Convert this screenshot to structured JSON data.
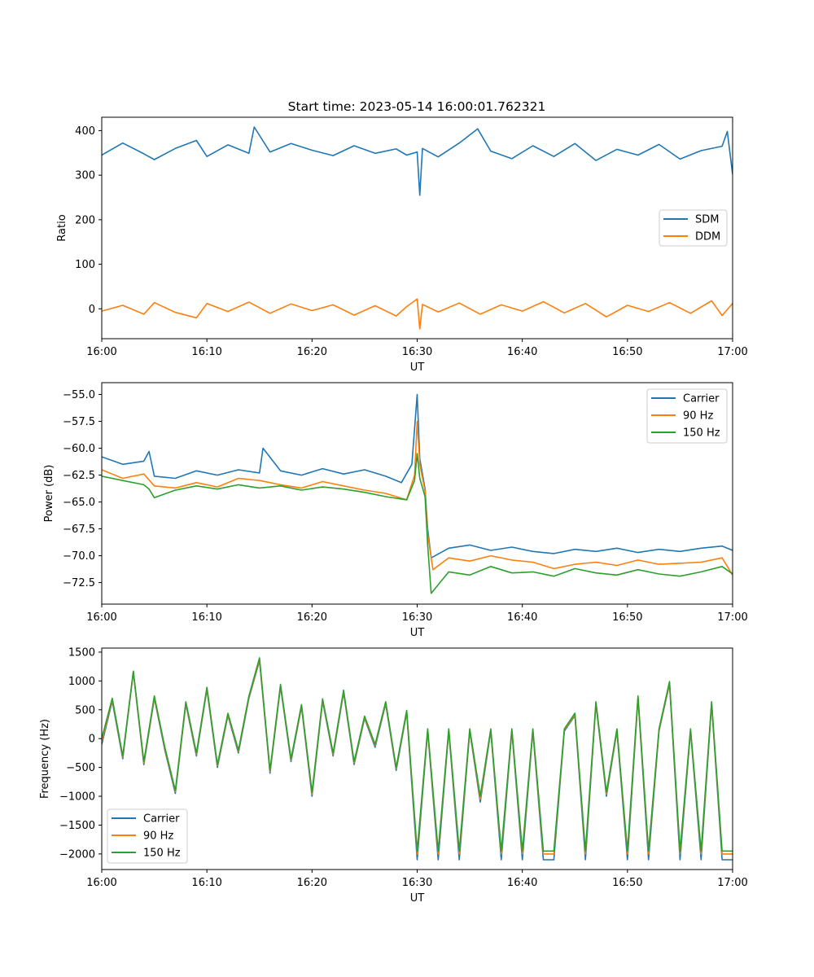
{
  "figure": {
    "title": "Start time: 2023-05-14 16:00:01.762321"
  },
  "colors": {
    "blue": "#1f77b4",
    "orange": "#ff7f0e",
    "green": "#2ca02c"
  },
  "chart_data": [
    {
      "type": "line",
      "title": "Start time: 2023-05-14 16:00:01.762321",
      "xlabel": "UT",
      "ylabel": "Ratio",
      "xlim": [
        "16:00",
        "17:00"
      ],
      "xticks": [
        "16:00",
        "16:10",
        "16:20",
        "16:30",
        "16:40",
        "16:50",
        "17:00"
      ],
      "ylim": [
        -67,
        430
      ],
      "yticks": [
        0,
        100,
        200,
        300,
        400
      ],
      "grid": false,
      "legend": "center-right",
      "series": [
        {
          "name": "SDM",
          "color": "#1f77b4",
          "x": [
            "16:00",
            "16:02",
            "16:04",
            "16:05",
            "16:07",
            "16:09",
            "16:10",
            "16:12",
            "16:14",
            "16:14:30",
            "16:16",
            "16:18",
            "16:20",
            "16:22",
            "16:24",
            "16:26",
            "16:28",
            "16:29",
            "16:30",
            "16:30:15",
            "16:30:30",
            "16:32",
            "16:34",
            "16:35:45",
            "16:37",
            "16:39",
            "16:41",
            "16:43",
            "16:45",
            "16:47",
            "16:49",
            "16:51",
            "16:53",
            "16:55",
            "16:57",
            "16:59",
            "16:59:30",
            "17:00"
          ],
          "values": [
            345,
            372,
            348,
            335,
            360,
            378,
            342,
            368,
            349,
            408,
            352,
            371,
            356,
            344,
            366,
            349,
            359,
            345,
            352,
            255,
            360,
            341,
            372,
            404,
            354,
            337,
            366,
            342,
            371,
            333,
            358,
            345,
            369,
            336,
            355,
            365,
            398,
            302
          ]
        },
        {
          "name": "DDM",
          "color": "#ff7f0e",
          "x": [
            "16:00",
            "16:02",
            "16:04",
            "16:05",
            "16:07",
            "16:09",
            "16:10",
            "16:12",
            "16:14",
            "16:16",
            "16:18",
            "16:20",
            "16:22",
            "16:24",
            "16:26",
            "16:28",
            "16:29",
            "16:30",
            "16:30:15",
            "16:30:30",
            "16:32",
            "16:34",
            "16:36",
            "16:38",
            "16:40",
            "16:42",
            "16:44",
            "16:46",
            "16:48",
            "16:50",
            "16:52",
            "16:54",
            "16:56",
            "16:58",
            "16:59",
            "17:00"
          ],
          "values": [
            -5,
            8,
            -12,
            14,
            -8,
            -20,
            12,
            -6,
            15,
            -10,
            11,
            -4,
            9,
            -14,
            7,
            -16,
            5,
            22,
            -45,
            10,
            -7,
            13,
            -12,
            9,
            -5,
            16,
            -9,
            12,
            -18,
            8,
            -6,
            14,
            -10,
            18,
            -15,
            12
          ]
        }
      ]
    },
    {
      "type": "line",
      "xlabel": "UT",
      "ylabel": "Power (dB)",
      "xlim": [
        "16:00",
        "17:00"
      ],
      "xticks": [
        "16:00",
        "16:10",
        "16:20",
        "16:30",
        "16:40",
        "16:50",
        "17:00"
      ],
      "ylim": [
        -74.5,
        -53.9
      ],
      "yticks": [
        -55.0,
        -57.5,
        -60.0,
        -62.5,
        -65.0,
        -67.5,
        -70.0,
        -72.5
      ],
      "ytick_labels": [
        "−55.0",
        "−57.5",
        "−60.0",
        "−62.5",
        "−65.0",
        "−67.5",
        "−70.0",
        "−72.5"
      ],
      "grid": false,
      "legend": "top-right",
      "series": [
        {
          "name": "Carrier",
          "color": "#1f77b4",
          "x": [
            "16:00",
            "16:02",
            "16:04",
            "16:04:30",
            "16:05",
            "16:07",
            "16:09",
            "16:11",
            "16:13",
            "16:15",
            "16:15:20",
            "16:17",
            "16:19",
            "16:21",
            "16:23",
            "16:25",
            "16:27",
            "16:28:30",
            "16:29:30",
            "16:30",
            "16:30:15",
            "16:30:45",
            "16:31",
            "16:31:20",
            "16:33",
            "16:35",
            "16:37",
            "16:39",
            "16:41",
            "16:43",
            "16:45",
            "16:47",
            "16:49",
            "16:51",
            "16:53",
            "16:55",
            "16:57",
            "16:59",
            "17:00"
          ],
          "values": [
            -60.8,
            -61.5,
            -61.2,
            -60.3,
            -62.6,
            -62.8,
            -62.1,
            -62.5,
            -62.0,
            -62.3,
            -60.0,
            -62.1,
            -62.5,
            -61.9,
            -62.4,
            -62.0,
            -62.6,
            -63.2,
            -61.5,
            -55.0,
            -61.0,
            -63.8,
            -67.5,
            -70.2,
            -69.3,
            -69.0,
            -69.5,
            -69.2,
            -69.6,
            -69.8,
            -69.4,
            -69.6,
            -69.3,
            -69.7,
            -69.4,
            -69.6,
            -69.3,
            -69.1,
            -69.5
          ]
        },
        {
          "name": "90 Hz",
          "color": "#ff7f0e",
          "x": [
            "16:00",
            "16:02",
            "16:04",
            "16:05",
            "16:07",
            "16:09",
            "16:11",
            "16:13",
            "16:15",
            "16:17",
            "16:19",
            "16:21",
            "16:23",
            "16:25",
            "16:27",
            "16:29",
            "16:29:45",
            "16:30",
            "16:30:15",
            "16:30:45",
            "16:31",
            "16:31:30",
            "16:33",
            "16:35",
            "16:37",
            "16:39",
            "16:41",
            "16:43",
            "16:45",
            "16:47",
            "16:49",
            "16:51",
            "16:53",
            "16:55",
            "16:57",
            "16:59",
            "17:00"
          ],
          "values": [
            -62.0,
            -62.8,
            -62.4,
            -63.5,
            -63.7,
            -63.2,
            -63.6,
            -62.8,
            -63.0,
            -63.4,
            -63.7,
            -63.1,
            -63.5,
            -63.9,
            -64.2,
            -64.8,
            -62.5,
            -57.5,
            -61.5,
            -64.0,
            -68.0,
            -71.3,
            -70.2,
            -70.5,
            -70.0,
            -70.4,
            -70.6,
            -71.2,
            -70.8,
            -70.6,
            -70.9,
            -70.4,
            -70.8,
            -70.7,
            -70.6,
            -70.2,
            -71.8
          ]
        },
        {
          "name": "150 Hz",
          "color": "#2ca02c",
          "x": [
            "16:00",
            "16:02",
            "16:04",
            "16:04:30",
            "16:05",
            "16:07",
            "16:09",
            "16:11",
            "16:13",
            "16:15",
            "16:17",
            "16:19",
            "16:21",
            "16:23",
            "16:25",
            "16:27",
            "16:29",
            "16:29:45",
            "16:30",
            "16:30:15",
            "16:30:45",
            "16:31",
            "16:31:20",
            "16:33",
            "16:35",
            "16:37",
            "16:39",
            "16:41",
            "16:43",
            "16:45",
            "16:47",
            "16:49",
            "16:51",
            "16:53",
            "16:55",
            "16:57",
            "16:59",
            "17:00"
          ],
          "values": [
            -62.6,
            -63.0,
            -63.4,
            -63.8,
            -64.6,
            -63.9,
            -63.5,
            -63.8,
            -63.4,
            -63.7,
            -63.5,
            -63.9,
            -63.6,
            -63.8,
            -64.1,
            -64.5,
            -64.8,
            -63.0,
            -60.5,
            -62.8,
            -64.5,
            -69.0,
            -73.5,
            -71.5,
            -71.8,
            -71.0,
            -71.6,
            -71.5,
            -71.9,
            -71.2,
            -71.6,
            -71.8,
            -71.3,
            -71.7,
            -71.9,
            -71.5,
            -71.0,
            -71.7
          ]
        }
      ]
    },
    {
      "type": "line",
      "xlabel": "UT",
      "ylabel": "Frequency (Hz)",
      "xlim": [
        "16:00",
        "17:00"
      ],
      "xticks": [
        "16:00",
        "16:10",
        "16:20",
        "16:30",
        "16:40",
        "16:50",
        "17:00"
      ],
      "ylim": [
        -2270,
        1570
      ],
      "yticks": [
        1500,
        1000,
        500,
        0,
        -500,
        -1000,
        -1500,
        -2000
      ],
      "ytick_labels": [
        "1500",
        "1000",
        "500",
        "0",
        "−500",
        "−1000",
        "−1500",
        "−2000"
      ],
      "grid": false,
      "legend": "bottom-left",
      "series": [
        {
          "name": "Carrier",
          "color": "#1f77b4",
          "x": [
            "16:00",
            "16:01",
            "16:02",
            "16:03",
            "16:04",
            "16:05",
            "16:06",
            "16:07",
            "16:08",
            "16:09",
            "16:10",
            "16:11",
            "16:12",
            "16:13",
            "16:14",
            "16:15",
            "16:16",
            "16:17",
            "16:18",
            "16:19",
            "16:20",
            "16:21",
            "16:22",
            "16:23",
            "16:24",
            "16:25",
            "16:26",
            "16:27",
            "16:28",
            "16:29",
            "16:30",
            "16:31",
            "16:32",
            "16:33",
            "16:34",
            "16:35",
            "16:36",
            "16:37",
            "16:38",
            "16:39",
            "16:40",
            "16:41",
            "16:42",
            "16:43",
            "16:44",
            "16:45",
            "16:46",
            "16:47",
            "16:48",
            "16:49",
            "16:50",
            "16:51",
            "16:52",
            "16:53",
            "16:54",
            "16:55",
            "16:56",
            "16:57",
            "16:58",
            "16:59",
            "17:00"
          ],
          "values": [
            -100,
            650,
            -350,
            1150,
            -450,
            700,
            -200,
            -950,
            600,
            -300,
            850,
            -500,
            400,
            -250,
            700,
            1350,
            -600,
            900,
            -400,
            550,
            -1000,
            650,
            -300,
            800,
            -450,
            350,
            -150,
            600,
            -550,
            450,
            -2100,
            130,
            -2100,
            130,
            -2100,
            130,
            -1100,
            130,
            -2100,
            130,
            -2100,
            130,
            -2100,
            -2100,
            130,
            400,
            -2100,
            600,
            -1000,
            130,
            -2100,
            700,
            -2100,
            130,
            950,
            -2100,
            130,
            -2100,
            600,
            -2100,
            -2100
          ]
        },
        {
          "name": "90 Hz",
          "color": "#ff7f0e",
          "x": [
            "16:00",
            "16:01",
            "16:02",
            "16:03",
            "16:04",
            "16:05",
            "16:06",
            "16:07",
            "16:08",
            "16:09",
            "16:10",
            "16:11",
            "16:12",
            "16:13",
            "16:14",
            "16:15",
            "16:16",
            "16:17",
            "16:18",
            "16:19",
            "16:20",
            "16:21",
            "16:22",
            "16:23",
            "16:24",
            "16:25",
            "16:26",
            "16:27",
            "16:28",
            "16:29",
            "16:30",
            "16:31",
            "16:32",
            "16:33",
            "16:34",
            "16:35",
            "16:36",
            "16:37",
            "16:38",
            "16:39",
            "16:40",
            "16:41",
            "16:42",
            "16:43",
            "16:44",
            "16:45",
            "16:46",
            "16:47",
            "16:48",
            "16:49",
            "16:50",
            "16:51",
            "16:52",
            "16:53",
            "16:54",
            "16:55",
            "16:56",
            "16:57",
            "16:58",
            "16:59",
            "17:00"
          ],
          "values": [
            -50,
            680,
            -320,
            1160,
            -420,
            720,
            -170,
            -920,
            620,
            -270,
            870,
            -470,
            420,
            -220,
            720,
            1370,
            -570,
            920,
            -370,
            570,
            -960,
            670,
            -270,
            820,
            -420,
            370,
            -120,
            620,
            -520,
            470,
            -2000,
            150,
            -2000,
            150,
            -2000,
            150,
            -1050,
            150,
            -2000,
            150,
            -2000,
            150,
            -2000,
            -2000,
            150,
            420,
            -2000,
            620,
            -960,
            150,
            -2000,
            720,
            -2000,
            150,
            970,
            -2000,
            150,
            -2000,
            620,
            -2000,
            -2000
          ]
        },
        {
          "name": "150 Hz",
          "color": "#2ca02c",
          "x": [
            "16:00",
            "16:01",
            "16:02",
            "16:03",
            "16:04",
            "16:05",
            "16:06",
            "16:07",
            "16:08",
            "16:09",
            "16:10",
            "16:11",
            "16:12",
            "16:13",
            "16:14",
            "16:15",
            "16:16",
            "16:17",
            "16:18",
            "16:19",
            "16:20",
            "16:21",
            "16:22",
            "16:23",
            "16:24",
            "16:25",
            "16:26",
            "16:27",
            "16:28",
            "16:29",
            "16:30",
            "16:31",
            "16:32",
            "16:33",
            "16:34",
            "16:35",
            "16:36",
            "16:37",
            "16:38",
            "16:39",
            "16:40",
            "16:41",
            "16:42",
            "16:43",
            "16:44",
            "16:45",
            "16:46",
            "16:47",
            "16:48",
            "16:49",
            "16:50",
            "16:51",
            "16:52",
            "16:53",
            "16:54",
            "16:55",
            "16:56",
            "16:57",
            "16:58",
            "16:59",
            "17:00"
          ],
          "values": [
            0,
            700,
            -300,
            1170,
            -400,
            740,
            -150,
            -900,
            640,
            -250,
            890,
            -450,
            440,
            -200,
            740,
            1400,
            -550,
            940,
            -350,
            590,
            -930,
            690,
            -250,
            840,
            -400,
            390,
            -100,
            640,
            -500,
            490,
            -1950,
            170,
            -1950,
            170,
            -1950,
            170,
            -1000,
            170,
            -1950,
            170,
            -1950,
            170,
            -1950,
            -1950,
            170,
            440,
            -1950,
            640,
            -930,
            170,
            -1950,
            740,
            -1950,
            170,
            990,
            -1950,
            170,
            -1950,
            640,
            -1950,
            -1950
          ]
        }
      ]
    }
  ]
}
